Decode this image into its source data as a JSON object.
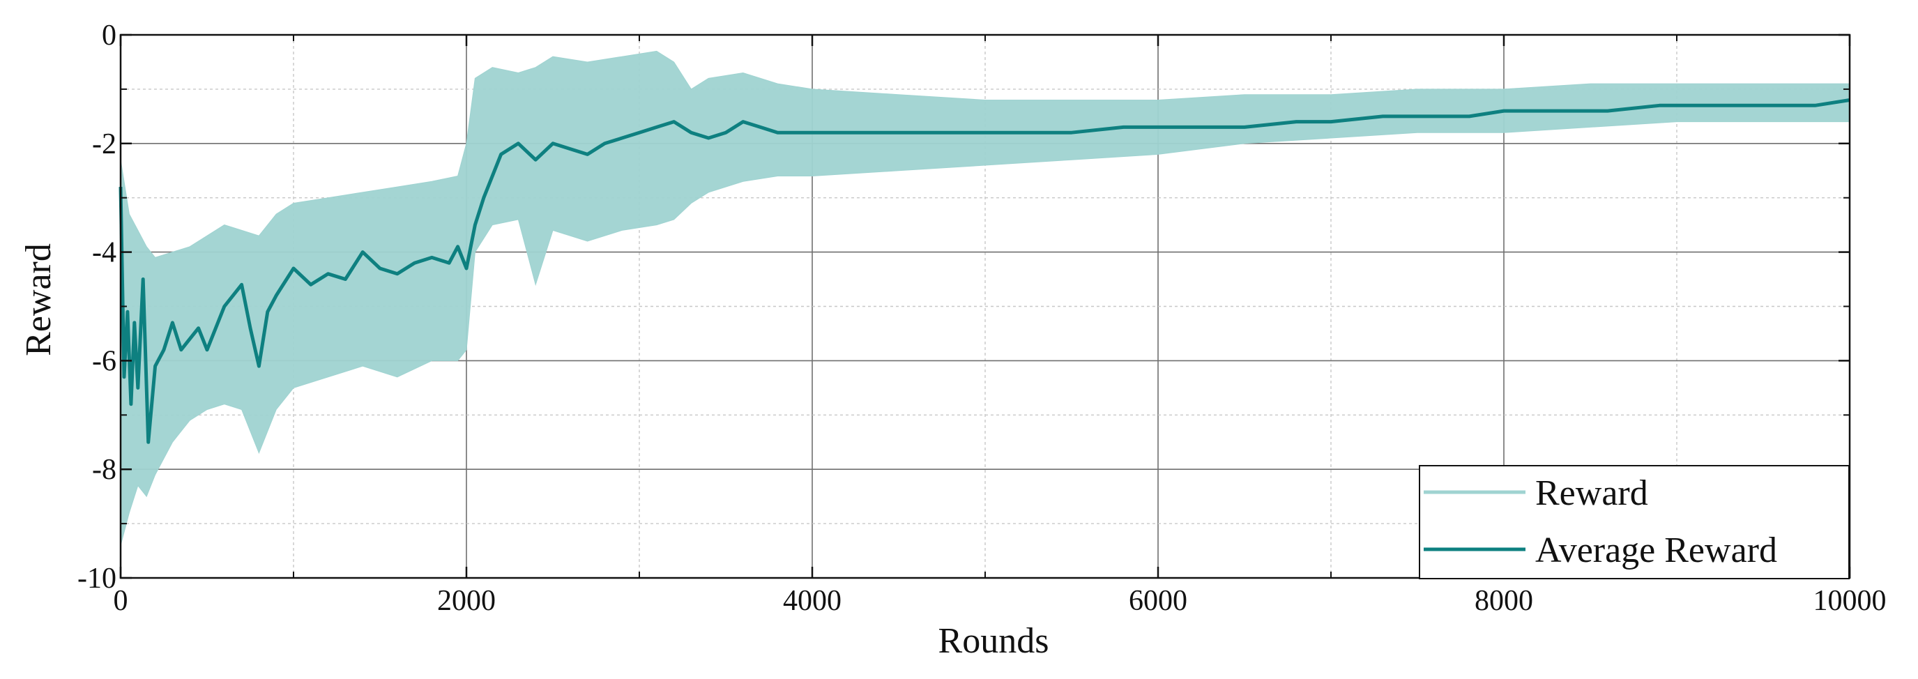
{
  "colors": {
    "reward": "#9fd3d1",
    "average_reward": "#0e8080",
    "grid_major": "#6f6f6f",
    "grid_minor": "#c8c8c8",
    "axes": "#111111"
  },
  "chart_data": {
    "type": "line",
    "title": "",
    "xlabel": "Rounds",
    "ylabel": "Reward",
    "xlim": [
      0,
      10000
    ],
    "ylim": [
      -10,
      0
    ],
    "xticks": [
      0,
      2000,
      4000,
      6000,
      8000,
      10000
    ],
    "xtick_labels": [
      "0",
      "2000",
      "4000",
      "6000",
      "8000",
      "10000"
    ],
    "yticks": [
      -10,
      -8,
      -6,
      -4,
      -2,
      0
    ],
    "ytick_labels": [
      "-10",
      "-8",
      "-6",
      "-4",
      "-2",
      "0"
    ],
    "grid": true,
    "legend_position": "bottom-right",
    "series": [
      {
        "name": "Reward",
        "style": "band",
        "x": [
          0,
          50,
          100,
          150,
          200,
          300,
          400,
          500,
          600,
          700,
          800,
          900,
          1000,
          1200,
          1400,
          1600,
          1800,
          1950,
          2000,
          2050,
          2150,
          2300,
          2400,
          2500,
          2700,
          2900,
          3100,
          3200,
          3300,
          3400,
          3600,
          3800,
          4000,
          4500,
          5000,
          5500,
          6000,
          6500,
          7000,
          7500,
          8000,
          8500,
          9000,
          9500,
          10000
        ],
        "upper": [
          -2.3,
          -3.3,
          -3.6,
          -3.9,
          -4.1,
          -4.0,
          -3.9,
          -3.7,
          -3.5,
          -3.6,
          -3.7,
          -3.3,
          -3.1,
          -3.0,
          -2.9,
          -2.8,
          -2.7,
          -2.6,
          -2.0,
          -0.8,
          -0.6,
          -0.7,
          -0.6,
          -0.4,
          -0.5,
          -0.4,
          -0.3,
          -0.5,
          -1.0,
          -0.8,
          -0.7,
          -0.9,
          -1.0,
          -1.1,
          -1.2,
          -1.2,
          -1.2,
          -1.1,
          -1.1,
          -1.0,
          -1.0,
          -0.9,
          -0.9,
          -0.9,
          -0.9
        ],
        "lower": [
          -9.4,
          -8.8,
          -8.3,
          -8.5,
          -8.1,
          -7.5,
          -7.1,
          -6.9,
          -6.8,
          -6.9,
          -7.7,
          -6.9,
          -6.5,
          -6.3,
          -6.1,
          -6.3,
          -6.0,
          -6.0,
          -5.8,
          -4.0,
          -3.5,
          -3.4,
          -4.6,
          -3.6,
          -3.8,
          -3.6,
          -3.5,
          -3.4,
          -3.1,
          -2.9,
          -2.7,
          -2.6,
          -2.6,
          -2.5,
          -2.4,
          -2.3,
          -2.2,
          -2.0,
          -1.9,
          -1.8,
          -1.8,
          -1.7,
          -1.6,
          -1.6,
          -1.6
        ]
      },
      {
        "name": "Average Reward",
        "style": "line",
        "x": [
          0,
          20,
          40,
          60,
          80,
          100,
          130,
          160,
          200,
          250,
          300,
          350,
          400,
          450,
          500,
          600,
          700,
          750,
          800,
          850,
          900,
          1000,
          1100,
          1200,
          1300,
          1400,
          1500,
          1600,
          1700,
          1800,
          1900,
          1950,
          2000,
          2050,
          2100,
          2200,
          2300,
          2400,
          2500,
          2600,
          2700,
          2800,
          2900,
          3000,
          3100,
          3200,
          3300,
          3400,
          3500,
          3600,
          3700,
          3800,
          4000,
          4200,
          4500,
          4800,
          5000,
          5200,
          5500,
          5800,
          6000,
          6200,
          6500,
          6800,
          7000,
          7300,
          7600,
          7800,
          8000,
          8300,
          8600,
          8900,
          9200,
          9500,
          9800,
          10000
        ],
        "y": [
          -2.8,
          -6.3,
          -5.1,
          -6.8,
          -5.3,
          -6.5,
          -4.5,
          -7.5,
          -6.1,
          -5.8,
          -5.3,
          -5.8,
          -5.6,
          -5.4,
          -5.8,
          -5.0,
          -4.6,
          -5.4,
          -6.1,
          -5.1,
          -4.8,
          -4.3,
          -4.6,
          -4.4,
          -4.5,
          -4.0,
          -4.3,
          -4.4,
          -4.2,
          -4.1,
          -4.2,
          -3.9,
          -4.3,
          -3.5,
          -3.0,
          -2.2,
          -2.0,
          -2.3,
          -2.0,
          -2.1,
          -2.2,
          -2.0,
          -1.9,
          -1.8,
          -1.7,
          -1.6,
          -1.8,
          -1.9,
          -1.8,
          -1.6,
          -1.7,
          -1.8,
          -1.8,
          -1.8,
          -1.8,
          -1.8,
          -1.8,
          -1.8,
          -1.8,
          -1.7,
          -1.7,
          -1.7,
          -1.7,
          -1.6,
          -1.6,
          -1.5,
          -1.5,
          -1.5,
          -1.4,
          -1.4,
          -1.4,
          -1.3,
          -1.3,
          -1.3,
          -1.3,
          -1.2
        ]
      }
    ]
  }
}
